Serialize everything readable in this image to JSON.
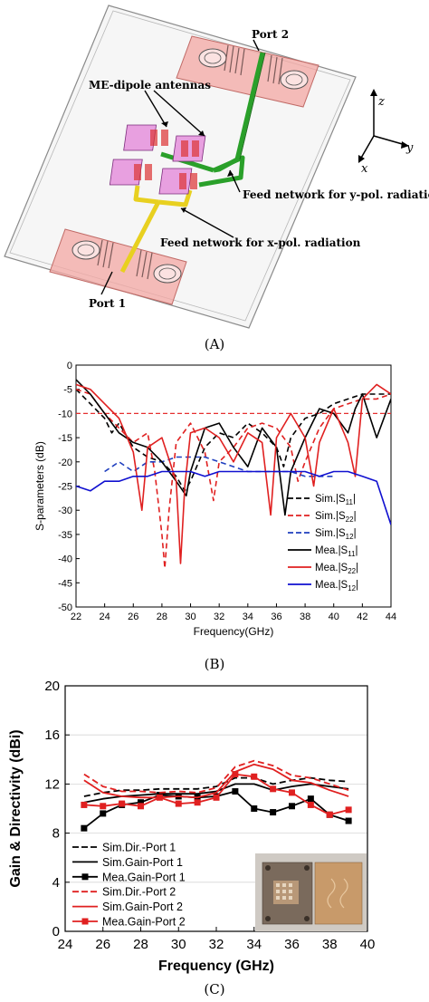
{
  "panel_a": {
    "label": "(A)",
    "annotations": {
      "port2": "Port 2",
      "port1": "Port 1",
      "me_dipole": "ME-dipole antennas",
      "feed_y": "Feed network for y-pol. radiation",
      "feed_x": "Feed network for x-pol. radiation",
      "axis_z": "z",
      "axis_y": "y",
      "axis_x": "x"
    }
  },
  "panel_b": {
    "label": "(B)"
  },
  "panel_c": {
    "label": "(C)",
    "photo": {
      "description": "fabricated antenna prototype photo"
    }
  },
  "chart_data": [
    {
      "type": "line",
      "title": "",
      "xlabel": "Frequency(GHz)",
      "ylabel": "S-parameters (dB)",
      "xlim": [
        22,
        44
      ],
      "ylim": [
        -50,
        0
      ],
      "xticks": [
        22,
        24,
        26,
        28,
        30,
        32,
        34,
        36,
        38,
        40,
        42,
        44
      ],
      "yticks": [
        0,
        -5,
        -10,
        -15,
        -20,
        -25,
        -30,
        -35,
        -40,
        -45,
        -50
      ],
      "grid": false,
      "legend_position": "bottom-right",
      "reference_line": {
        "y": -10,
        "color": "#e53030",
        "style": "dashed"
      },
      "series": [
        {
          "name": "Sim.|S11|",
          "legend_main": "Sim.|S",
          "legend_sub": "11",
          "color": "#000000",
          "dash": "dashed",
          "x": [
            22,
            23,
            24,
            24.5,
            25,
            26,
            27,
            28,
            29,
            29.6,
            30,
            31,
            32,
            33,
            34,
            35,
            36,
            36.5,
            37,
            38,
            39,
            40,
            41,
            42,
            43,
            44
          ],
          "y": [
            -5,
            -8,
            -11,
            -14,
            -12,
            -17,
            -19,
            -20,
            -23,
            -26,
            -24,
            -17,
            -14,
            -15,
            -12,
            -14,
            -17,
            -21,
            -15,
            -11,
            -10,
            -8,
            -7,
            -6,
            -6,
            -6
          ]
        },
        {
          "name": "Sim.|S22|",
          "legend_main": "Sim.|S",
          "legend_sub": "22",
          "color": "#e02020",
          "dash": "dashed",
          "x": [
            22,
            23,
            24,
            25,
            26,
            27,
            27.5,
            28,
            28.2,
            28.5,
            29,
            30,
            31,
            31.6,
            32,
            33,
            34,
            35,
            36,
            37,
            37.5,
            38,
            39,
            40,
            41,
            42,
            43,
            44
          ],
          "y": [
            -5,
            -6,
            -10,
            -13,
            -16,
            -14,
            -22,
            -35,
            -42,
            -30,
            -16,
            -12,
            -18,
            -28,
            -20,
            -17,
            -13,
            -12,
            -13,
            -17,
            -24,
            -20,
            -13,
            -9,
            -8,
            -7,
            -7,
            -6
          ]
        },
        {
          "name": "Sim.|S12|",
          "legend_main": "Sim.|S",
          "legend_sub": "12",
          "color": "#1f3fbf",
          "dash": "dashed",
          "x": [
            24,
            25,
            26,
            27,
            28,
            29,
            30,
            31,
            32,
            33,
            34,
            35,
            36,
            37,
            38,
            39,
            40
          ],
          "y": [
            -22,
            -20,
            -22,
            -20,
            -20,
            -19,
            -19,
            -19,
            -20,
            -21,
            -22,
            -22,
            -22,
            -22,
            -23,
            -23,
            -23
          ]
        },
        {
          "name": "Mea.|S11|",
          "legend_main": "Mea.|S",
          "legend_sub": "11",
          "color": "#000000",
          "dash": "solid",
          "x": [
            22,
            23,
            24,
            25,
            26,
            27,
            28,
            29,
            29.7,
            30,
            31,
            32,
            33,
            34,
            35,
            36,
            36.6,
            37,
            38,
            39,
            40,
            41,
            41.5,
            42,
            43,
            44
          ],
          "y": [
            -3,
            -6,
            -10,
            -14,
            -16,
            -17,
            -20,
            -24,
            -27,
            -22,
            -13,
            -12,
            -17,
            -21,
            -13,
            -17,
            -31,
            -22,
            -15,
            -9,
            -10,
            -14,
            -9,
            -6,
            -15,
            -7
          ]
        },
        {
          "name": "Mea.|S22|",
          "legend_main": "Mea.|S",
          "legend_sub": "22",
          "color": "#e02020",
          "dash": "solid",
          "x": [
            22,
            23,
            24,
            25,
            26,
            26.6,
            27,
            28,
            29,
            29.3,
            29.6,
            30,
            31,
            32,
            33,
            34,
            35,
            35.6,
            36,
            37,
            38,
            38.6,
            39,
            40,
            41,
            41.5,
            42,
            43,
            44
          ],
          "y": [
            -4,
            -5,
            -8,
            -11,
            -18,
            -30,
            -17,
            -15,
            -24,
            -41,
            -25,
            -14,
            -13,
            -15,
            -20,
            -14,
            -16,
            -31,
            -15,
            -10,
            -15,
            -25,
            -16,
            -9,
            -16,
            -23,
            -7,
            -4,
            -6
          ]
        },
        {
          "name": "Mea.|S12|",
          "legend_main": "Mea.|S",
          "legend_sub": "12",
          "color": "#1010d0",
          "dash": "solid",
          "x": [
            22,
            23,
            24,
            25,
            26,
            27,
            28,
            29,
            30,
            31,
            32,
            33,
            34,
            35,
            36,
            37,
            38,
            39,
            40,
            41,
            42,
            43,
            44
          ],
          "y": [
            -25,
            -26,
            -24,
            -24,
            -23,
            -23,
            -22,
            -22,
            -22,
            -23,
            -22,
            -22,
            -22,
            -22,
            -22,
            -22,
            -22,
            -23,
            -22,
            -22,
            -23,
            -24,
            -33
          ]
        }
      ]
    },
    {
      "type": "line",
      "title": "",
      "xlabel": "Frequency (GHz)",
      "ylabel": "Gain & Directivity (dBi)",
      "xlim": [
        24,
        40
      ],
      "ylim": [
        0,
        20
      ],
      "xticks": [
        24,
        26,
        28,
        30,
        32,
        34,
        36,
        38,
        40
      ],
      "yticks": [
        0,
        4,
        8,
        12,
        16,
        20
      ],
      "grid": true,
      "legend_position": "bottom-left",
      "series": [
        {
          "name": "Sim.Dir.-Port 1",
          "color": "#000000",
          "dash": "dashed",
          "marker": "none",
          "x": [
            25,
            26,
            27,
            28,
            29,
            30,
            31,
            32,
            33,
            34,
            35,
            36,
            37,
            38,
            39
          ],
          "y": [
            11.0,
            11.3,
            11.5,
            11.5,
            11.6,
            11.6,
            11.6,
            11.8,
            12.5,
            12.5,
            12.0,
            12.3,
            12.5,
            12.3,
            12.2
          ]
        },
        {
          "name": "Sim.Gain-Port 1",
          "color": "#000000",
          "dash": "solid",
          "marker": "none",
          "x": [
            25,
            26,
            27,
            28,
            29,
            30,
            31,
            32,
            33,
            34,
            35,
            36,
            37,
            38,
            39
          ],
          "y": [
            10.5,
            10.8,
            11.0,
            11.1,
            11.2,
            11.2,
            11.2,
            11.4,
            12.0,
            12.0,
            11.5,
            11.8,
            12.0,
            11.8,
            11.6
          ]
        },
        {
          "name": "Mea.Gain-Port 1",
          "color": "#000000",
          "dash": "solid",
          "marker": "square",
          "x": [
            25,
            26,
            27,
            28,
            29,
            30,
            31,
            32,
            33,
            34,
            35,
            36,
            37,
            38,
            39
          ],
          "y": [
            8.4,
            9.6,
            10.3,
            10.5,
            11.1,
            11.0,
            10.9,
            11.0,
            11.4,
            10.0,
            9.7,
            10.2,
            10.8,
            9.5,
            9.0
          ]
        },
        {
          "name": "Sim.Dir.-Port 2",
          "color": "#e02020",
          "dash": "dashed",
          "marker": "none",
          "x": [
            25,
            26,
            27,
            28,
            29,
            30,
            31,
            32,
            33,
            34,
            35,
            36,
            37,
            38,
            39
          ],
          "y": [
            12.8,
            11.8,
            11.4,
            11.4,
            11.3,
            11.4,
            11.3,
            11.7,
            13.4,
            13.9,
            13.5,
            12.7,
            12.5,
            12.0,
            11.5
          ]
        },
        {
          "name": "Sim.Gain-Port 2",
          "color": "#e02020",
          "dash": "solid",
          "marker": "none",
          "x": [
            25,
            26,
            27,
            28,
            29,
            30,
            31,
            32,
            33,
            34,
            35,
            36,
            37,
            38,
            39
          ],
          "y": [
            12.3,
            11.3,
            11.0,
            10.9,
            10.9,
            11.0,
            10.9,
            11.3,
            13.0,
            13.6,
            13.2,
            12.3,
            12.1,
            11.5,
            11.0
          ]
        },
        {
          "name": "Mea.Gain-Port 2",
          "color": "#e02020",
          "dash": "solid",
          "marker": "square",
          "x": [
            25,
            26,
            27,
            28,
            29,
            30,
            31,
            32,
            33,
            34,
            35,
            36,
            37,
            38,
            39
          ],
          "y": [
            10.3,
            10.2,
            10.4,
            10.2,
            10.9,
            10.4,
            10.5,
            10.9,
            12.8,
            12.6,
            11.6,
            11.3,
            10.3,
            9.5,
            9.9
          ]
        }
      ]
    }
  ]
}
